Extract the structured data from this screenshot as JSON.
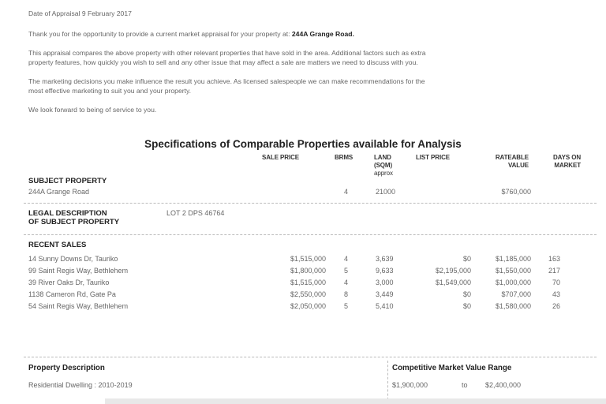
{
  "intro": {
    "date_line": "Date of Appraisal 9 February 2017",
    "thanks": "Thank you for the opportunity to provide a current market appraisal for your property at:",
    "address_bold": "244A Grange Road.",
    "para1_l1": "This appraisal compares the above property with other relevant properties that have sold in the area. Additional factors such as extra",
    "para1_l2": "property features, how quickly you wish to sell and any other issue that may affect a sale are matters we need to discuss with you.",
    "para2_l1": "The marketing decisions you make influence the result you achieve. As licensed salespeople we can make recommendations for the",
    "para2_l2": "most effective marketing to suit you and your property.",
    "closing": "We look forward to being of service to you."
  },
  "specs": {
    "title": "Specifications of Comparable Properties available for Analysis",
    "columns": {
      "sale_price": "SALE PRICE",
      "brms": "BRMS",
      "land_l1": "LAND",
      "land_l2": "(SQM)",
      "land_l3": "approx",
      "list_price": "LIST PRICE",
      "rateable_l1": "RATEABLE",
      "rateable_l2": "VALUE",
      "days_l1": "DAYS ON",
      "days_l2": "MARKET"
    },
    "subject": {
      "heading": "SUBJECT PROPERTY",
      "address": "244A Grange Road",
      "brms": "4",
      "land": "21000",
      "rateable": "$760,000"
    },
    "legal": {
      "heading_l1": "LEGAL DESCRIPTION",
      "heading_l2": "OF SUBJECT PROPERTY",
      "value": "LOT 2 DPS 46764"
    },
    "recent_sales": {
      "heading": "RECENT SALES",
      "rows": [
        {
          "address": "14 Sunny Downs Dr, Tauriko",
          "sale": "$1,515,000",
          "brms": "4",
          "land": "3,639",
          "list": "$0",
          "rateable": "$1,185,000",
          "days": "163"
        },
        {
          "address": "99 Saint Regis Way, Bethlehem",
          "sale": "$1,800,000",
          "brms": "5",
          "land": "9,633",
          "list": "$2,195,000",
          "rateable": "$1,550,000",
          "days": "217"
        },
        {
          "address": "39 River Oaks Dr, Tauriko",
          "sale": "$1,515,000",
          "brms": "4",
          "land": "3,000",
          "list": "$1,549,000",
          "rateable": "$1,000,000",
          "days": "70"
        },
        {
          "address": "1138 Cameron Rd, Gate Pa",
          "sale": "$2,550,000",
          "brms": "8",
          "land": "3,449",
          "list": "$0",
          "rateable": "$707,000",
          "days": "43"
        },
        {
          "address": "54 Saint Regis Way, Bethlehem",
          "sale": "$2,050,000",
          "brms": "5",
          "land": "5,410",
          "list": "$0",
          "rateable": "$1,580,000",
          "days": "26"
        }
      ]
    }
  },
  "footer": {
    "property_description": {
      "heading": "Property Description",
      "value": "Residential Dwelling :  2010-2019"
    },
    "value_range": {
      "heading": "Competitive Market Value Range",
      "low": "$1,900,000",
      "to": "to",
      "high": "$2,400,000"
    }
  }
}
